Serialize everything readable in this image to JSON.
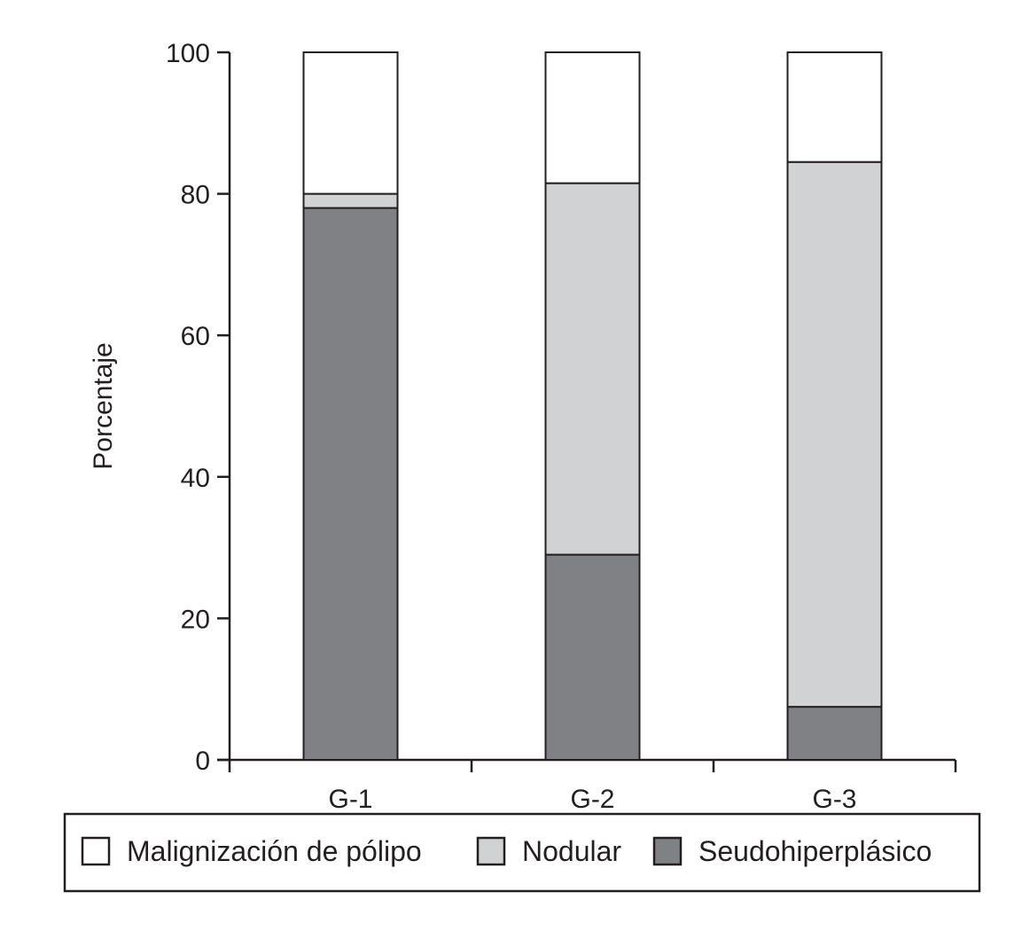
{
  "chart_data": {
    "type": "bar",
    "stacked": true,
    "categories": [
      "G-1",
      "G-2",
      "G-3"
    ],
    "series": [
      {
        "name": "Seudohiperplásico",
        "values": [
          78,
          29,
          7.5
        ],
        "color": "#808184"
      },
      {
        "name": "Nodular",
        "values": [
          2,
          52.5,
          77
        ],
        "color": "#d1d2d4"
      },
      {
        "name": "Malignización de pólipo",
        "values": [
          20,
          18.5,
          15.5
        ],
        "color": "#ffffff"
      }
    ],
    "legend_order": [
      "Malignización de pólipo",
      "Nodular",
      "Seudohiperplásico"
    ],
    "ylabel": "Porcentaje",
    "xlabel": "",
    "ylim": [
      0,
      100
    ],
    "yticks": [
      0,
      20,
      40,
      60,
      80,
      100
    ],
    "grid": false,
    "legend_position": "bottom"
  }
}
